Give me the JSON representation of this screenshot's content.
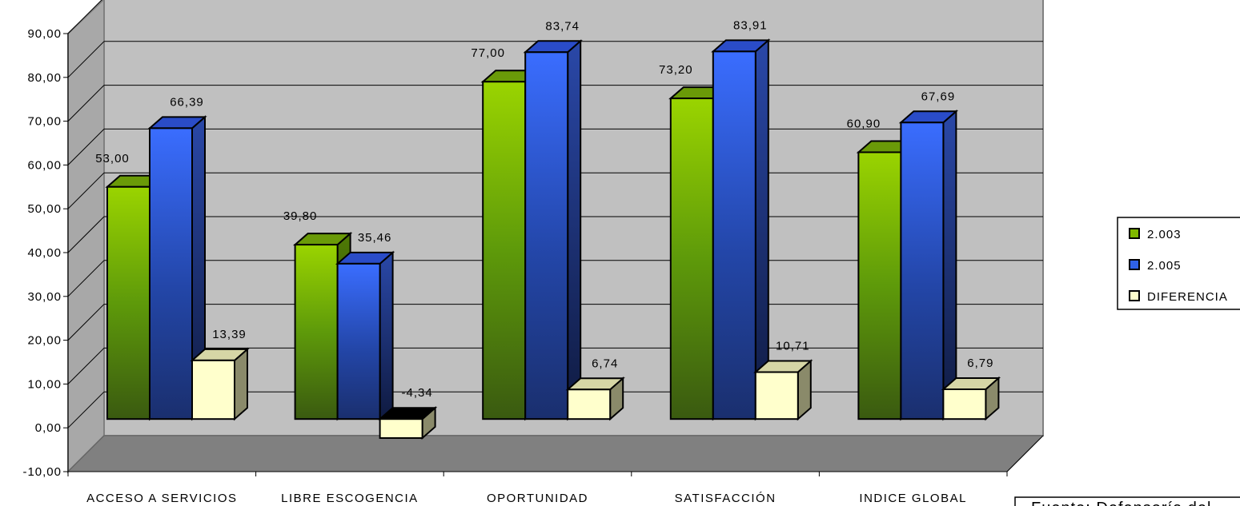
{
  "chart_data": {
    "type": "bar",
    "categories": [
      "ACCESO A SERVICIOS",
      "LIBRE ESCOGENCIA",
      "OPORTUNIDAD",
      "SATISFACCIÓN",
      "INDICE GLOBAL"
    ],
    "series": [
      {
        "name": "2.003",
        "values": [
          53.0,
          39.8,
          77.0,
          73.2,
          60.9
        ],
        "labels": [
          "53,00",
          "39,80",
          "77,00",
          "73,20",
          "60,90"
        ],
        "color": "#7fb800"
      },
      {
        "name": "2.005",
        "values": [
          66.39,
          35.46,
          83.74,
          83.91,
          67.69
        ],
        "labels": [
          "66,39",
          "35,46",
          "83,74",
          "83,91",
          "67,69"
        ],
        "color": "#2f62e8"
      },
      {
        "name": "DIFERENCIA",
        "values": [
          13.39,
          -4.34,
          6.74,
          10.71,
          6.79
        ],
        "labels": [
          "13,39",
          "-4,34",
          "6,74",
          "10,71",
          "6,79"
        ],
        "color": "#ffffcc"
      }
    ],
    "ylim": [
      -10,
      90
    ],
    "yticks": [
      "-10,00",
      "0,00",
      "10,00",
      "20,00",
      "30,00",
      "40,00",
      "50,00",
      "60,00",
      "70,00",
      "80,00",
      "90,00"
    ],
    "grid": true,
    "legend_position": "right",
    "style": "3d-clustered-column"
  },
  "source_note": "Fuente: Defensoría del"
}
